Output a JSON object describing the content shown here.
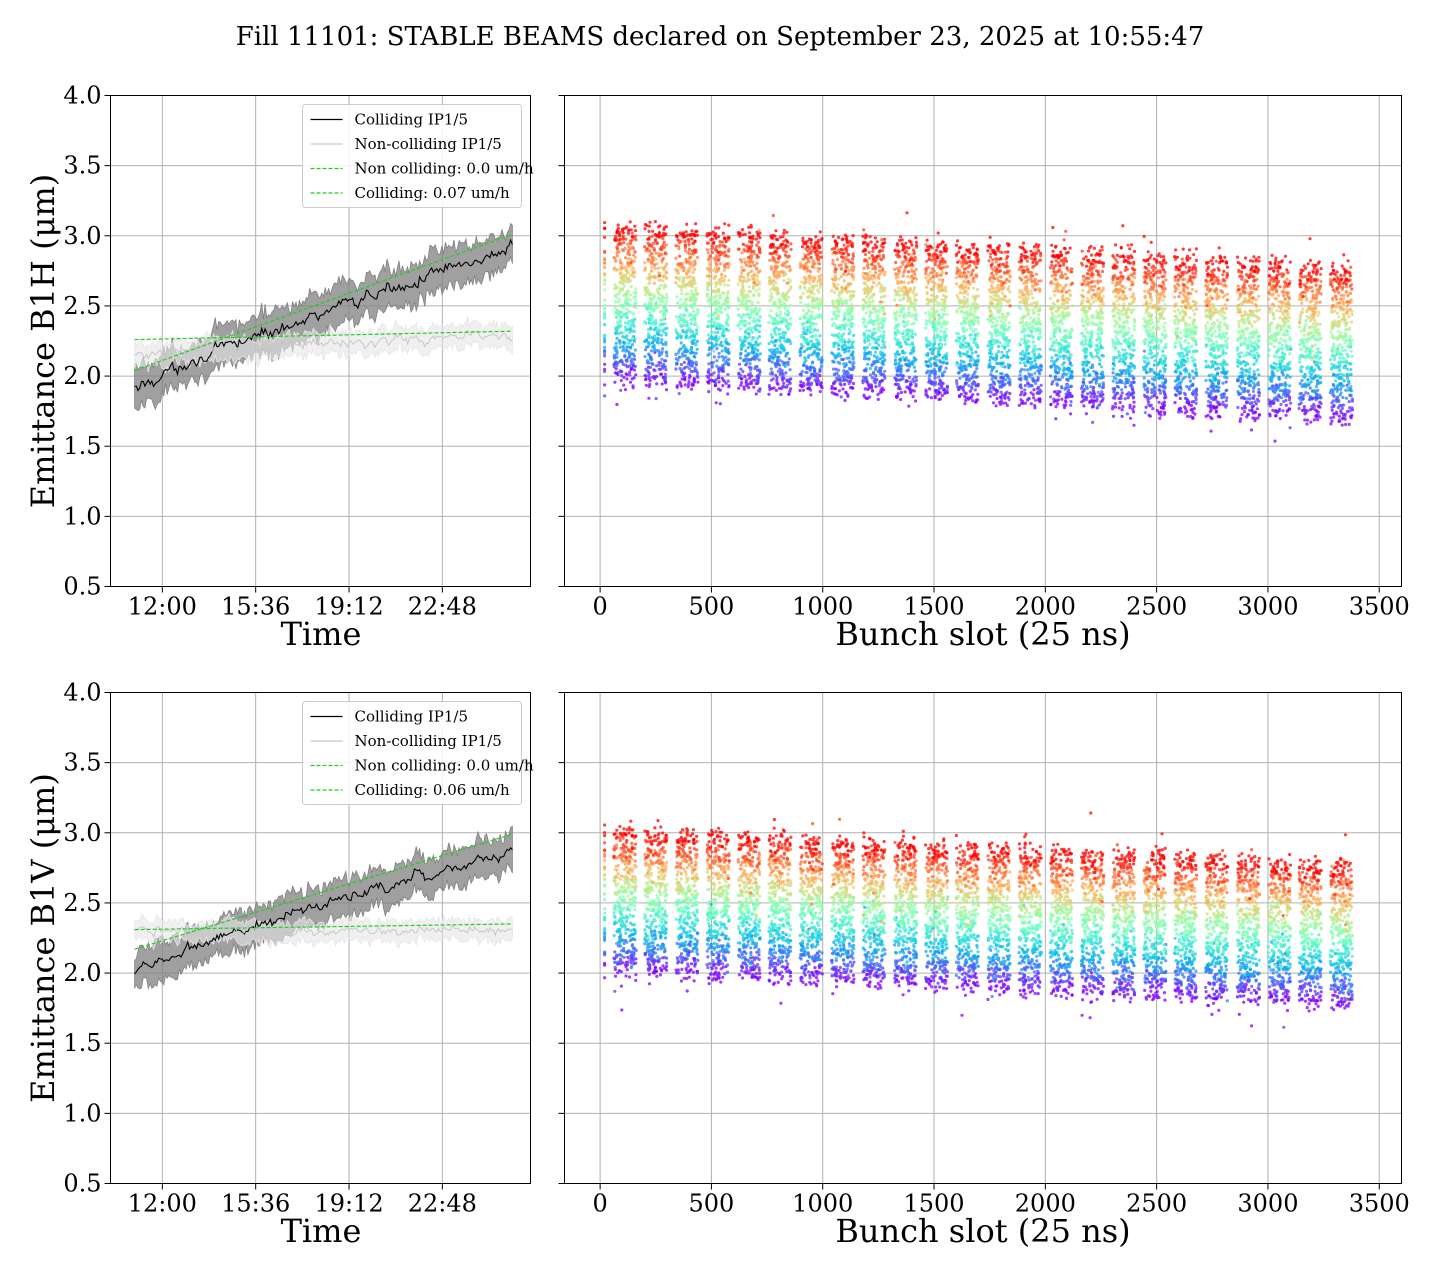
{
  "title": "Fill 11101: STABLE BEAMS declared on September 23, 2025 at 10:55:47",
  "chart_data": [
    {
      "id": "b1h-time",
      "type": "line",
      "xlabel": "Time",
      "ylabel": "Emittance B1H (μm)",
      "ylim": [
        0.5,
        4.0
      ],
      "yticks": [
        "0.5",
        "1.0",
        "1.5",
        "2.0",
        "2.5",
        "3.0",
        "3.5",
        "4.0"
      ],
      "xlim_hours": [
        10.0,
        26.2
      ],
      "xticks": [
        {
          "hour": 12.0,
          "label": "12:00"
        },
        {
          "hour": 15.6,
          "label": "15:36"
        },
        {
          "hour": 19.2,
          "label": "19:12"
        },
        {
          "hour": 22.8,
          "label": "22:48"
        }
      ],
      "grid": true,
      "legend_position": "upper-right",
      "legend": [
        "Colliding IP1/5",
        "Non-colliding IP1/5",
        "Non colliding: 0.0 um/h",
        "Colliding: 0.07 um/h"
      ],
      "series": [
        {
          "name": "Colliding IP1/5",
          "color": "#000000",
          "band_color": "#808080",
          "t_start": 10.93,
          "t_end": 25.5,
          "start": 1.9,
          "end": 2.9,
          "noise": 0.07,
          "band": 0.14
        },
        {
          "name": "Non-colliding IP1/5",
          "color": "#c8c8c8",
          "band_color": "#e6e6e6",
          "t_start": 10.93,
          "t_end": 25.5,
          "start": 2.15,
          "end": 2.3,
          "noise": 0.06,
          "band": 0.08
        },
        {
          "name": "Non colliding: 0.0 um/h",
          "color": "#22cc22",
          "dashed": true,
          "t_start": 10.93,
          "t_end": 25.5,
          "start": 2.26,
          "end": 2.32
        },
        {
          "name": "Colliding: 0.07 um/h",
          "color": "#22cc22",
          "dashed": true,
          "t_start": 10.93,
          "t_end": 25.5,
          "start": 2.04,
          "end": 3.01
        }
      ]
    },
    {
      "id": "b1h-bunch",
      "type": "scatter",
      "xlabel": "Bunch slot (25 ns)",
      "ylabel": "",
      "xlim": [
        -160,
        3600
      ],
      "xticks": [
        0,
        500,
        1000,
        1500,
        2000,
        2500,
        3000,
        3500
      ],
      "ylim": [
        0.5,
        4.0
      ],
      "grid": true,
      "colormap": "rainbow (time: violet = early, red = late)",
      "trains": [
        [
          20,
          20
        ],
        [
          62,
          162
        ],
        [
          200,
          300
        ],
        [
          340,
          440
        ],
        [
          480,
          580
        ],
        [
          620,
          720
        ],
        [
          758,
          858
        ],
        [
          898,
          998
        ],
        [
          1040,
          1140
        ],
        [
          1180,
          1280
        ],
        [
          1322,
          1422
        ],
        [
          1462,
          1562
        ],
        [
          1600,
          1700
        ],
        [
          1742,
          1842
        ],
        [
          1882,
          1982
        ],
        [
          2022,
          2122
        ],
        [
          2162,
          2262
        ],
        [
          2302,
          2402
        ],
        [
          2442,
          2542
        ],
        [
          2580,
          2680
        ],
        [
          2720,
          2820
        ],
        [
          2862,
          2962
        ],
        [
          3002,
          3102
        ],
        [
          3140,
          3240
        ],
        [
          3280,
          3380
        ]
      ],
      "ymin_early": 2.0,
      "ymin_late": 1.72,
      "ymax_early": 3.05,
      "ymax_late": 2.75
    },
    {
      "id": "b1v-time",
      "type": "line",
      "xlabel": "Time",
      "ylabel": "Emittance B1V (μm)",
      "ylim": [
        0.5,
        4.0
      ],
      "yticks": [
        "0.5",
        "1.0",
        "1.5",
        "2.0",
        "2.5",
        "3.0",
        "3.5",
        "4.0"
      ],
      "xlim_hours": [
        10.0,
        26.2
      ],
      "xticks": [
        {
          "hour": 12.0,
          "label": "12:00"
        },
        {
          "hour": 15.6,
          "label": "15:36"
        },
        {
          "hour": 19.2,
          "label": "19:12"
        },
        {
          "hour": 22.8,
          "label": "22:48"
        }
      ],
      "grid": true,
      "legend_position": "upper-right",
      "legend": [
        "Colliding IP1/5",
        "Non-colliding IP1/5",
        "Non colliding: 0.0 um/h",
        "Colliding: 0.06 um/h"
      ],
      "series": [
        {
          "name": "Colliding IP1/5",
          "color": "#000000",
          "band_color": "#808080",
          "t_start": 10.93,
          "t_end": 25.5,
          "start": 2.0,
          "end": 2.88,
          "noise": 0.06,
          "band": 0.13
        },
        {
          "name": "Non-colliding IP1/5",
          "color": "#c8c8c8",
          "band_color": "#e6e6e6",
          "t_start": 10.93,
          "t_end": 25.5,
          "start": 2.3,
          "end": 2.3,
          "noise": 0.05,
          "band": 0.07
        },
        {
          "name": "Non colliding: 0.0 um/h",
          "color": "#22cc22",
          "dashed": true,
          "t_start": 10.93,
          "t_end": 25.5,
          "start": 2.31,
          "end": 2.35
        },
        {
          "name": "Colliding: 0.06 um/h",
          "color": "#22cc22",
          "dashed": true,
          "t_start": 10.93,
          "t_end": 25.5,
          "start": 2.17,
          "end": 2.99
        }
      ]
    },
    {
      "id": "b1v-bunch",
      "type": "scatter",
      "xlabel": "Bunch slot (25 ns)",
      "ylabel": "",
      "xlim": [
        -160,
        3600
      ],
      "xticks": [
        0,
        500,
        1000,
        1500,
        2000,
        2500,
        3000,
        3500
      ],
      "ylim": [
        0.5,
        4.0
      ],
      "grid": true,
      "colormap": "rainbow (time: violet = early, red = late)",
      "trains": [
        [
          20,
          20
        ],
        [
          62,
          162
        ],
        [
          200,
          300
        ],
        [
          340,
          440
        ],
        [
          480,
          580
        ],
        [
          620,
          720
        ],
        [
          758,
          858
        ],
        [
          898,
          998
        ],
        [
          1040,
          1140
        ],
        [
          1180,
          1280
        ],
        [
          1322,
          1422
        ],
        [
          1462,
          1562
        ],
        [
          1600,
          1700
        ],
        [
          1742,
          1842
        ],
        [
          1882,
          1982
        ],
        [
          2022,
          2122
        ],
        [
          2162,
          2262
        ],
        [
          2302,
          2402
        ],
        [
          2442,
          2542
        ],
        [
          2580,
          2680
        ],
        [
          2720,
          2820
        ],
        [
          2862,
          2962
        ],
        [
          3002,
          3102
        ],
        [
          3140,
          3240
        ],
        [
          3280,
          3380
        ]
      ],
      "ymin_early": 2.05,
      "ymin_late": 1.8,
      "ymax_early": 3.0,
      "ymax_late": 2.75
    }
  ]
}
